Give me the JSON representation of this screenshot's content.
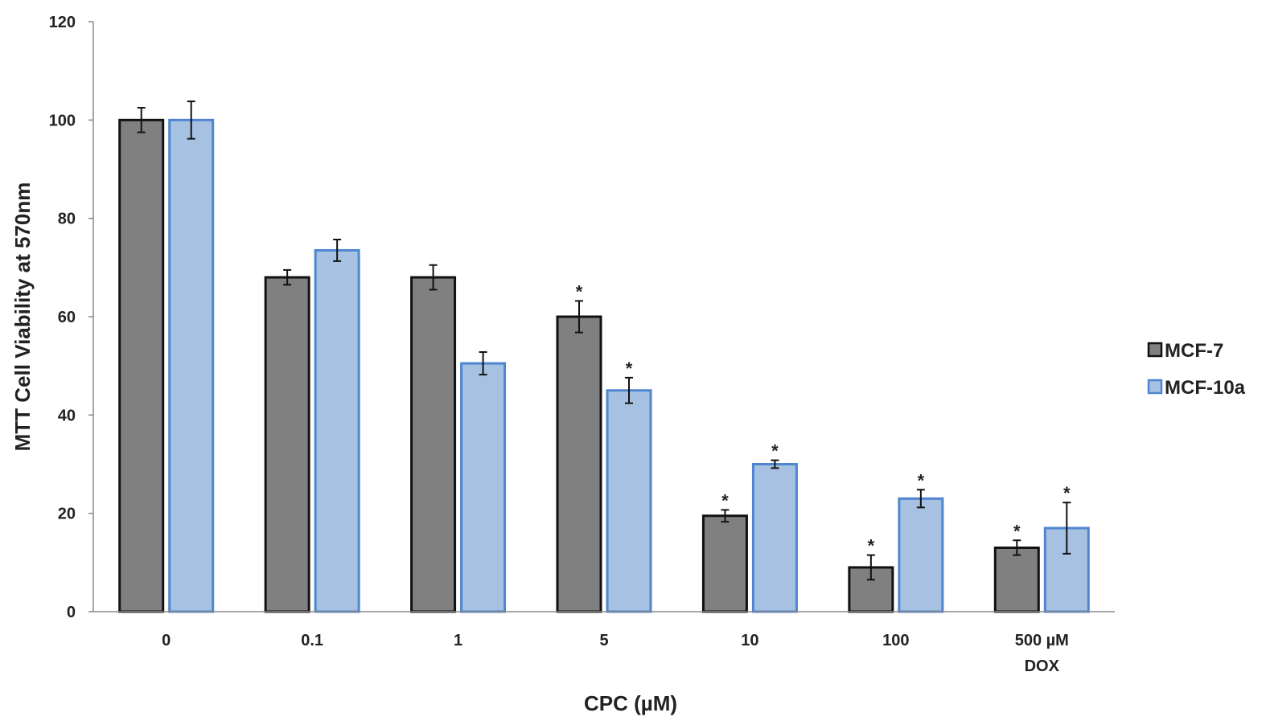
{
  "chart_data": {
    "type": "bar",
    "title": "",
    "xlabel": "CPC (µM)",
    "ylabel": "MTT Cell Viability at 570nm",
    "ylim": [
      0,
      120
    ],
    "yticks": [
      0,
      20,
      40,
      60,
      80,
      100,
      120
    ],
    "grid": false,
    "legend_position": "right",
    "categories": [
      [
        "0"
      ],
      [
        "0.1"
      ],
      [
        "1"
      ],
      [
        "5"
      ],
      [
        "10"
      ],
      [
        "100"
      ],
      [
        "500 µM",
        "DOX"
      ]
    ],
    "series": [
      {
        "name": "MCF-7",
        "fill": "#808080",
        "stroke": "#111111",
        "values": [
          100,
          68,
          68,
          60,
          19.5,
          9,
          13
        ],
        "errors": [
          2.5,
          1.5,
          2.5,
          3.2,
          1.2,
          2.5,
          1.5
        ],
        "significant": [
          false,
          false,
          false,
          true,
          true,
          true,
          true
        ]
      },
      {
        "name": "MCF-10a",
        "fill": "#a6c1e1",
        "stroke": "#4f86cf",
        "values": [
          100,
          73.5,
          50.5,
          45,
          30,
          23,
          17
        ],
        "errors": [
          3.8,
          2.2,
          2.3,
          2.6,
          0.8,
          1.8,
          5.2
        ],
        "significant": [
          false,
          false,
          false,
          true,
          true,
          true,
          true
        ]
      }
    ],
    "significance_marker": "*"
  }
}
